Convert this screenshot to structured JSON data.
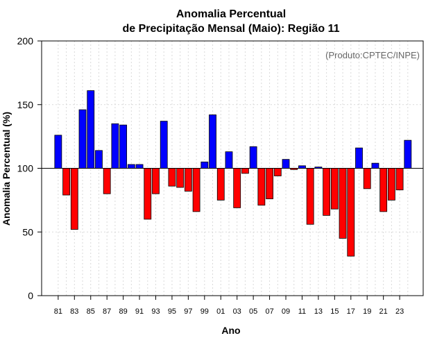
{
  "chart_data": {
    "type": "bar",
    "title_line1": "Anomalia Percentual",
    "title_line2": "de Precipitação Mensal (Maio): Região 11",
    "xlabel": "Ano",
    "ylabel": "Anomalia Percentual (%)",
    "credit": "(Produto:CPTEC/INPE)",
    "baseline": 100,
    "ylim": [
      0,
      200
    ],
    "yticks": [
      0,
      50,
      100,
      150,
      200
    ],
    "categories": [
      "81",
      "82",
      "83",
      "84",
      "85",
      "86",
      "87",
      "88",
      "89",
      "90",
      "91",
      "92",
      "93",
      "94",
      "95",
      "96",
      "97",
      "98",
      "99",
      "00",
      "01",
      "02",
      "03",
      "04",
      "05",
      "06",
      "07",
      "08",
      "09",
      "10",
      "11",
      "12",
      "13",
      "14",
      "15",
      "16",
      "17",
      "18",
      "19",
      "20",
      "21",
      "22",
      "23",
      "24"
    ],
    "xtick_labels": [
      "81",
      "83",
      "85",
      "87",
      "89",
      "91",
      "93",
      "95",
      "97",
      "99",
      "01",
      "03",
      "05",
      "07",
      "09",
      "11",
      "13",
      "15",
      "17",
      "19",
      "21",
      "23"
    ],
    "values": [
      126,
      79,
      52,
      146,
      161,
      114,
      80,
      135,
      134,
      103,
      103,
      60,
      80,
      137,
      86,
      85,
      82,
      66,
      105,
      142,
      75,
      113,
      69,
      96,
      117,
      71,
      76,
      94,
      107,
      99,
      102,
      56,
      101,
      63,
      68,
      45,
      31,
      116,
      84,
      104,
      66,
      75,
      83,
      122
    ],
    "colors": {
      "above": "#0000ff",
      "below": "#ff0000",
      "outline": "#000000",
      "grid": "#d9d9d9"
    }
  }
}
